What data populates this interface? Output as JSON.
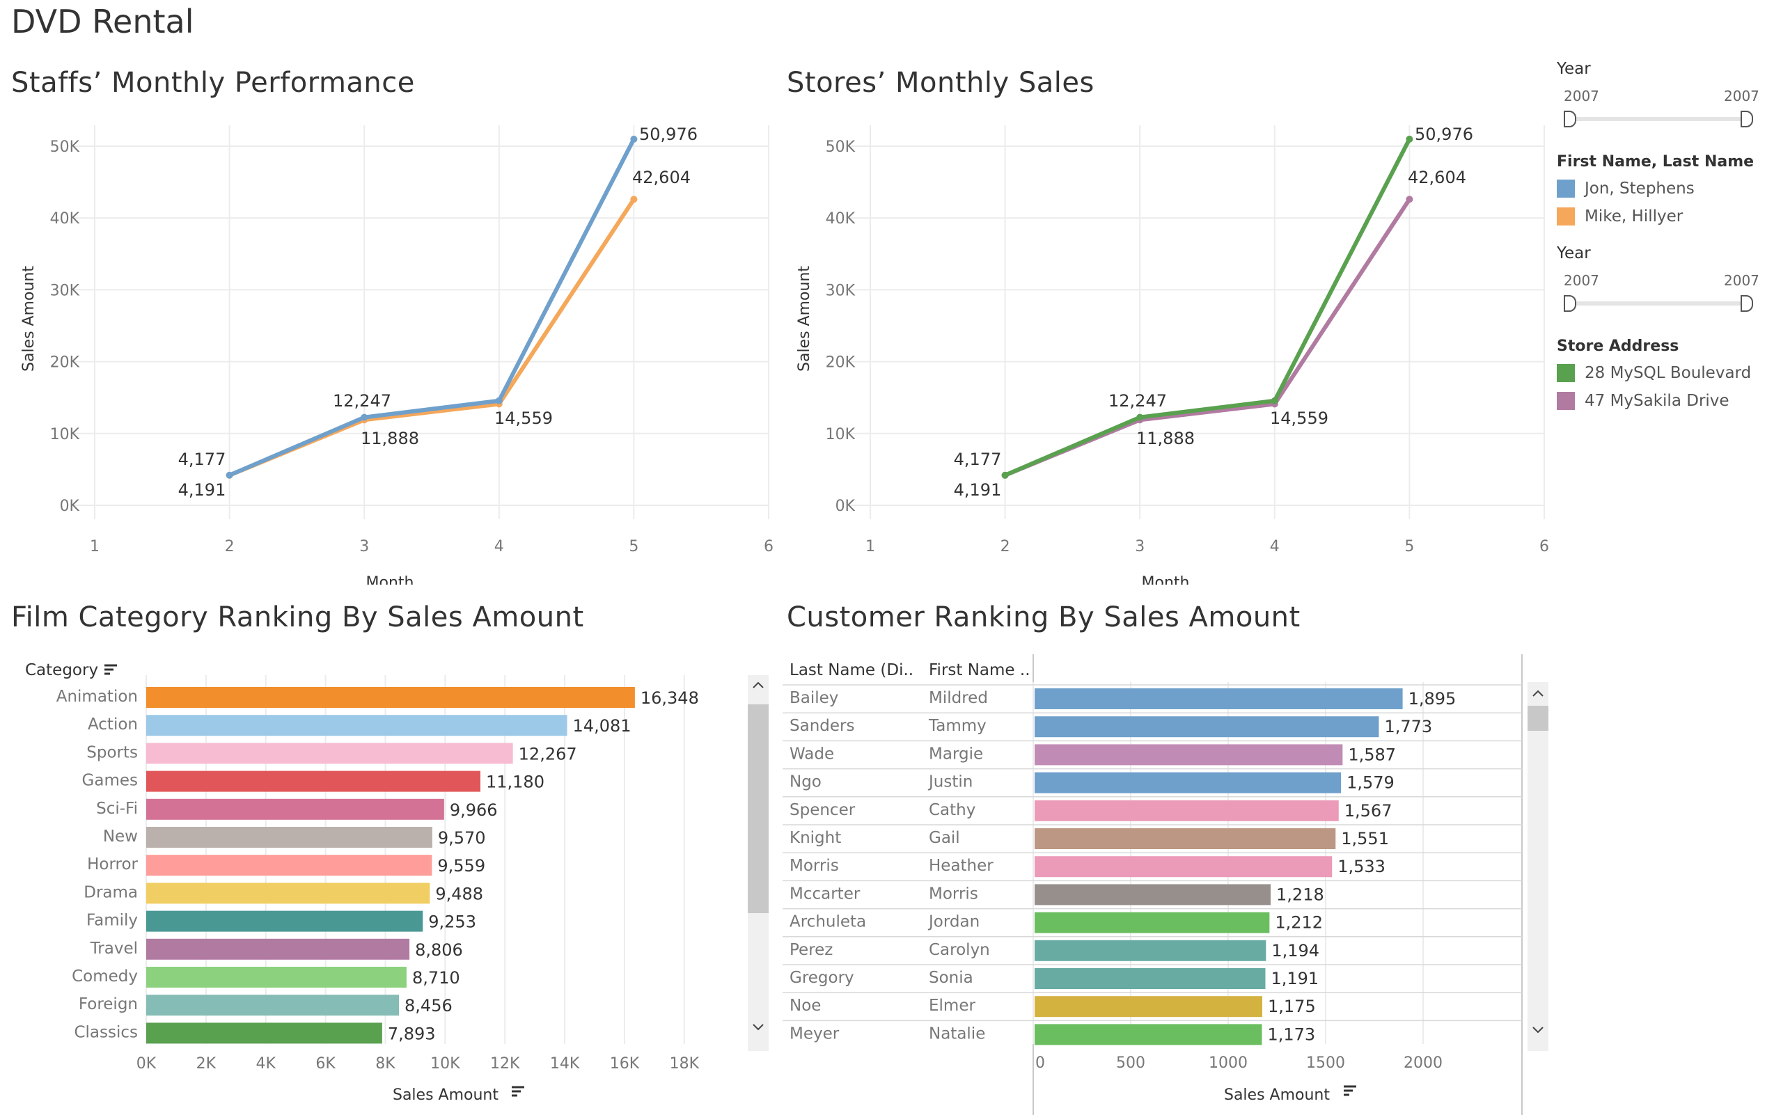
{
  "page_title": "DVD Rental",
  "sidebar": {
    "year_filter_1": {
      "title": "Year",
      "min_label": "2007",
      "max_label": "2007"
    },
    "staff_legend": {
      "title": "First Name, Last Name",
      "items": [
        {
          "label": "Jon, Stephens",
          "color": "#6fa0cb"
        },
        {
          "label": "Mike, Hillyer",
          "color": "#f5a75a"
        }
      ]
    },
    "year_filter_2": {
      "title": "Year",
      "min_label": "2007",
      "max_label": "2007"
    },
    "store_legend": {
      "title": "Store Address",
      "items": [
        {
          "label": "28 MySQL Boulevard",
          "color": "#59a14f"
        },
        {
          "label": "47 MySakila Drive",
          "color": "#b07aa1"
        }
      ]
    }
  },
  "chart_data": [
    {
      "type": "line",
      "title": "Staffs’ Monthly Performance",
      "xlabel": "Month",
      "ylabel": "Sales Amount",
      "x_ticks": [
        "1",
        "2",
        "3",
        "4",
        "5",
        "6"
      ],
      "xlim": [
        1,
        6
      ],
      "y_ticks": [
        "0K",
        "10K",
        "20K",
        "30K",
        "40K",
        "50K"
      ],
      "ylim": [
        0,
        50000
      ],
      "x": [
        2,
        3,
        4,
        5
      ],
      "series": [
        {
          "name": "Jon, Stephens",
          "color": "#6fa0cb",
          "values": [
            4191,
            12247,
            14559,
            50976
          ]
        },
        {
          "name": "Mike, Hillyer",
          "color": "#f5a75a",
          "values": [
            4177,
            11888,
            14100,
            42604
          ]
        }
      ],
      "data_labels": [
        "4,177",
        "4,191",
        "12,247",
        "11,888",
        "14,559",
        "50,976",
        "42,604"
      ],
      "grid": true
    },
    {
      "type": "line",
      "title": "Stores’ Monthly Sales",
      "xlabel": "Month",
      "ylabel": "Sales Amount",
      "x_ticks": [
        "1",
        "2",
        "3",
        "4",
        "5",
        "6"
      ],
      "xlim": [
        1,
        6
      ],
      "y_ticks": [
        "0K",
        "10K",
        "20K",
        "30K",
        "40K",
        "50K"
      ],
      "ylim": [
        0,
        50000
      ],
      "x": [
        2,
        3,
        4,
        5
      ],
      "series": [
        {
          "name": "28 MySQL Boulevard",
          "color": "#59a14f",
          "values": [
            4191,
            12247,
            14559,
            50976
          ]
        },
        {
          "name": "47 MySakila Drive",
          "color": "#b07aa1",
          "values": [
            4177,
            11888,
            14100,
            42604
          ]
        }
      ],
      "data_labels": [
        "4,177",
        "4,191",
        "12,247",
        "11,888",
        "14,559",
        "50,976",
        "42,604"
      ],
      "grid": true
    },
    {
      "type": "bar",
      "title": "Film Category Ranking By Sales Amount",
      "column_header": "Category",
      "xlabel": "Sales Amount",
      "x_ticks": [
        "0K",
        "2K",
        "4K",
        "6K",
        "8K",
        "10K",
        "12K",
        "14K",
        "16K",
        "18K"
      ],
      "xlim": [
        0,
        18000
      ],
      "categories": [
        "Animation",
        "Action",
        "Sports",
        "Games",
        "Sci-Fi",
        "New",
        "Horror",
        "Drama",
        "Family",
        "Travel",
        "Comedy",
        "Foreign",
        "Classics"
      ],
      "values": [
        16348,
        14081,
        12267,
        11180,
        9966,
        9570,
        9559,
        9488,
        9253,
        8806,
        8710,
        8456,
        7893
      ],
      "value_labels": [
        "16,348",
        "14,081",
        "12,267",
        "11,180",
        "9,966",
        "9,570",
        "9,559",
        "9,488",
        "9,253",
        "8,806",
        "8,710",
        "8,456",
        "7,893"
      ],
      "colors": [
        "#f28e2b",
        "#9dc9e9",
        "#f8bcd2",
        "#e15759",
        "#d37295",
        "#bab0ac",
        "#ff9d9a",
        "#f1ce63",
        "#499894",
        "#b07aa1",
        "#8cd17d",
        "#86bcb6",
        "#59a14f"
      ]
    },
    {
      "type": "bar",
      "title": "Customer Ranking By Sales Amount",
      "column_headers": [
        "Last Name (Di..",
        "First Name .."
      ],
      "xlabel": "Sales Amount",
      "x_ticks": [
        "0",
        "500",
        "1000",
        "1500",
        "2000"
      ],
      "xlim": [
        0,
        2000
      ],
      "last_names": [
        "Bailey",
        "Sanders",
        "Wade",
        "Ngo",
        "Spencer",
        "Knight",
        "Morris",
        "Mccarter",
        "Archuleta",
        "Perez",
        "Gregory",
        "Noe",
        "Meyer"
      ],
      "first_names": [
        "Mildred",
        "Tammy",
        "Margie",
        "Justin",
        "Cathy",
        "Gail",
        "Heather",
        "Morris",
        "Jordan",
        "Carolyn",
        "Sonia",
        "Elmer",
        "Natalie"
      ],
      "values": [
        1895,
        1773,
        1587,
        1579,
        1567,
        1551,
        1533,
        1218,
        1212,
        1194,
        1191,
        1175,
        1173
      ],
      "value_labels": [
        "1,895",
        "1,773",
        "1,587",
        "1,579",
        "1,567",
        "1,551",
        "1,533",
        "1,218",
        "1,212",
        "1,194",
        "1,191",
        "1,175",
        "1,173"
      ],
      "colors": [
        "#6fa0cb",
        "#6fa0cb",
        "#c08bb4",
        "#6fa0cb",
        "#eb9ab8",
        "#bb9784",
        "#eb9ab8",
        "#978f8c",
        "#6abe5f",
        "#67aba3",
        "#67aba3",
        "#d4b240",
        "#6abe5f"
      ]
    }
  ]
}
